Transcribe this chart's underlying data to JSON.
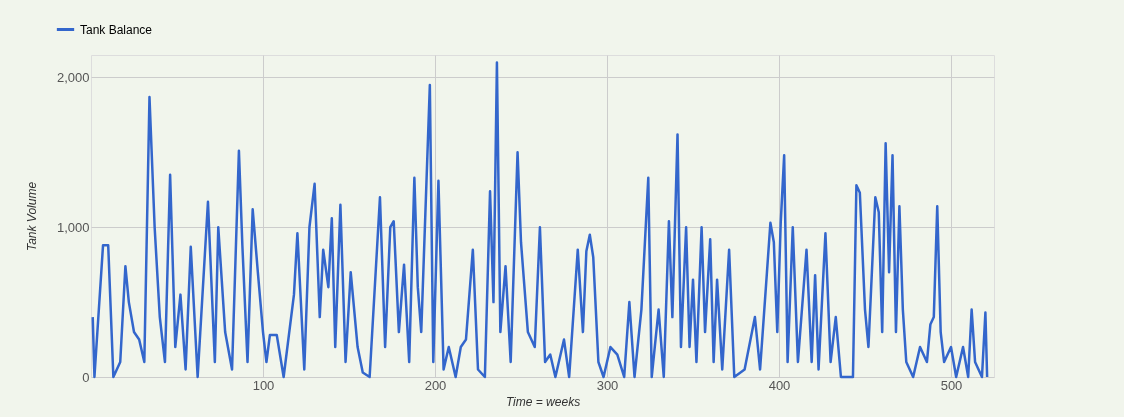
{
  "chart_data": {
    "type": "line",
    "xlabel": "Time = weeks",
    "ylabel": "Tank Volume",
    "x": [
      1,
      2,
      7,
      10,
      13,
      17,
      20,
      22,
      25,
      28,
      31,
      34,
      37,
      40,
      43,
      46,
      49,
      52,
      55,
      58,
      62,
      68,
      72,
      74,
      78,
      82,
      86,
      88,
      91,
      94,
      97,
      100,
      102,
      104,
      108,
      112,
      118,
      120,
      124,
      127,
      130,
      133,
      135,
      138,
      140,
      142,
      145,
      148,
      151,
      155,
      158,
      162,
      168,
      171,
      174,
      176,
      179,
      182,
      185,
      188,
      190,
      192,
      197,
      199,
      202,
      205,
      208,
      212,
      215,
      218,
      222,
      225,
      229,
      232,
      234,
      236,
      238,
      241,
      244,
      248,
      250,
      254,
      258,
      261,
      264,
      267,
      270,
      275,
      278,
      283,
      286,
      288,
      290,
      292,
      295,
      298,
      302,
      306,
      310,
      313,
      316,
      320,
      324,
      326,
      330,
      333,
      336,
      338,
      341,
      343,
      346,
      348,
      350,
      352,
      355,
      357,
      360,
      362,
      364,
      367,
      371,
      374,
      380,
      386,
      389,
      393,
      395,
      397,
      399,
      401,
      403,
      405,
      408,
      411,
      416,
      419,
      421,
      423,
      427,
      430,
      433,
      436,
      443,
      445,
      447,
      450,
      452,
      456,
      458,
      460,
      462,
      464,
      466,
      468,
      470,
      472,
      474,
      478,
      482,
      486,
      488,
      490,
      492,
      494,
      496,
      500,
      503,
      507,
      510,
      512,
      514,
      518,
      520,
      521
    ],
    "series": [
      {
        "name": "Tank Balance",
        "color": "#3366cc",
        "values": [
          400,
          0,
          880,
          880,
          0,
          100,
          740,
          500,
          300,
          250,
          100,
          1870,
          1000,
          400,
          100,
          1350,
          200,
          550,
          50,
          870,
          0,
          1170,
          100,
          1000,
          300,
          50,
          1510,
          880,
          100,
          1120,
          700,
          300,
          100,
          280,
          280,
          0,
          550,
          960,
          50,
          1000,
          1290,
          400,
          850,
          600,
          1060,
          200,
          1150,
          100,
          700,
          200,
          30,
          0,
          1200,
          200,
          1000,
          1040,
          300,
          750,
          100,
          1330,
          600,
          300,
          1950,
          100,
          1310,
          50,
          200,
          0,
          200,
          250,
          850,
          50,
          0,
          1240,
          500,
          2100,
          300,
          740,
          100,
          1500,
          900,
          300,
          200,
          1000,
          100,
          150,
          0,
          250,
          0,
          850,
          300,
          840,
          950,
          800,
          100,
          0,
          200,
          150,
          0,
          500,
          0,
          450,
          1330,
          0,
          450,
          0,
          1040,
          400,
          1620,
          200,
          1000,
          200,
          650,
          100,
          1000,
          300,
          920,
          100,
          650,
          50,
          850,
          0,
          50,
          400,
          50,
          700,
          1030,
          900,
          300,
          1030,
          1480,
          100,
          1000,
          100,
          850,
          100,
          680,
          50,
          960,
          100,
          400,
          0,
          0,
          1280,
          1230,
          450,
          200,
          1200,
          1100,
          300,
          1560,
          700,
          1480,
          300,
          1140,
          450,
          100,
          0,
          200,
          100,
          350,
          400,
          1140,
          300,
          100,
          200,
          0,
          200,
          0,
          450,
          100,
          0,
          430,
          0
        ]
      }
    ],
    "xlim": [
      0,
      525
    ],
    "xticks": [
      100,
      200,
      300,
      400,
      500
    ],
    "ylim": [
      0,
      2150
    ],
    "yticks": [
      {
        "value": 0,
        "label": "0"
      },
      {
        "value": 1000,
        "label": "1,000"
      },
      {
        "value": 2000,
        "label": "2,000"
      }
    ],
    "grid": true,
    "legend": "top left",
    "marker": "none",
    "line_style": "solid"
  }
}
